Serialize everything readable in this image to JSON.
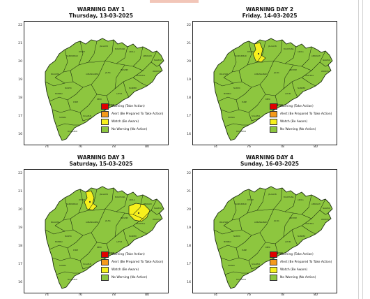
{
  "colors": {
    "warning": "#e00000",
    "alert": "#f59a1b",
    "watch": "#f7f01d",
    "no_warning": "#8dc63f",
    "boundary": "#1a2a10"
  },
  "axes": {
    "y_ticks": [
      "22",
      "21",
      "20",
      "19",
      "18",
      "17",
      "16"
    ],
    "x_ticks": [
      "74",
      "76",
      "78",
      "80"
    ]
  },
  "legend": [
    {
      "label": "Warning (Take Action)",
      "color_key": "warning"
    },
    {
      "label": "Alert (Be Prepared To Take Action)",
      "color_key": "alert"
    },
    {
      "label": "Watch (Be Aware)",
      "color_key": "watch"
    },
    {
      "label": "No Warning (No Action)",
      "color_key": "no_warning"
    }
  ],
  "panels": [
    {
      "title": "WARNING DAY 1",
      "date": "Thursday, 13-03-2025",
      "watch_regions": []
    },
    {
      "title": "WARNING DAY 2",
      "date": "Friday, 14-03-2025",
      "watch_regions": [
        "north-central district"
      ]
    },
    {
      "title": "WARNING DAY 3",
      "date": "Saturday, 15-03-2025",
      "watch_regions": [
        "north-central district",
        "eastern district"
      ]
    },
    {
      "title": "WARNING DAY 4",
      "date": "Sunday, 16-03-2025",
      "watch_regions": []
    }
  ]
}
